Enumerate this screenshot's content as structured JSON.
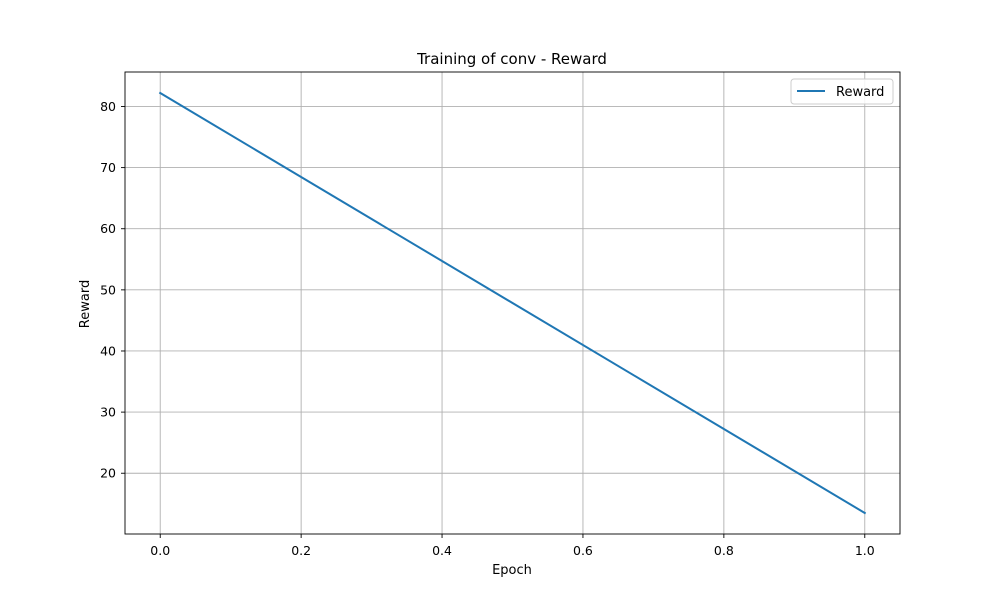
{
  "chart_data": {
    "type": "line",
    "title": "Training of conv - Reward",
    "xlabel": "Epoch",
    "ylabel": "Reward",
    "x": [
      0.0,
      1.0
    ],
    "series": [
      {
        "name": "Reward",
        "color": "#1f77b4",
        "values": [
          82.2,
          13.5
        ]
      }
    ],
    "xlim": [
      -0.05,
      1.05
    ],
    "ylim": [
      10.06,
      85.64
    ],
    "x_ticks": [
      0.0,
      0.2,
      0.4,
      0.6,
      0.8,
      1.0
    ],
    "x_tick_labels": [
      "0.0",
      "0.2",
      "0.4",
      "0.6",
      "0.8",
      "1.0"
    ],
    "y_ticks": [
      20,
      30,
      40,
      50,
      60,
      70,
      80
    ],
    "y_tick_labels": [
      "20",
      "30",
      "40",
      "50",
      "60",
      "70",
      "80"
    ],
    "grid": true,
    "legend_position": "top-right"
  }
}
